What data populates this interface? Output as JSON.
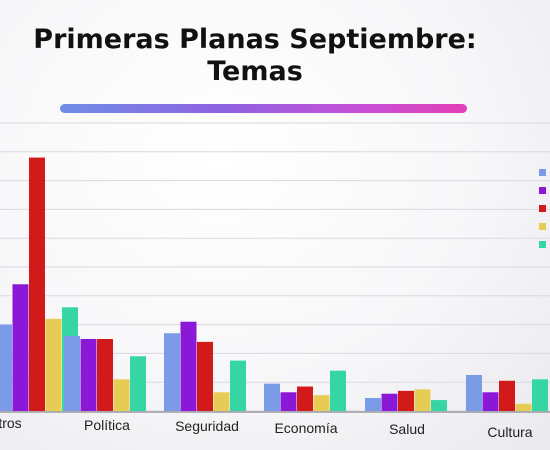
{
  "slide": {
    "title_line1": "Primeras Planas Septiembre:",
    "title_line2": "Temas"
  },
  "colors": {
    "gradient_start": "#6f8ee6",
    "gradient_end": "#e23fb6"
  },
  "chart_data": {
    "type": "bar",
    "title": "Primeras Planas Septiembre: Temas",
    "categories": [
      "tros",
      "Política",
      "Seguridad",
      "Economía",
      "Salud",
      "Cultura"
    ],
    "grid": true,
    "legend_placement": "right",
    "series": [
      {
        "color": "#7b9be8",
        "values": [
          30,
          26,
          27,
          9.5,
          4.5,
          12.5
        ]
      },
      {
        "color": "#8a18d6",
        "values": [
          44,
          25,
          31,
          6.5,
          6,
          6.5
        ]
      },
      {
        "color": "#d21a1a",
        "values": [
          88,
          25,
          24,
          8.5,
          7,
          10.5
        ]
      },
      {
        "color": "#e6cc55",
        "values": [
          32,
          11,
          6.5,
          5.5,
          7.5,
          2.5
        ]
      },
      {
        "color": "#35d6a3",
        "values": [
          36,
          19,
          17.5,
          14,
          3.8,
          11
        ]
      }
    ],
    "ylim": [
      0,
      100
    ]
  }
}
